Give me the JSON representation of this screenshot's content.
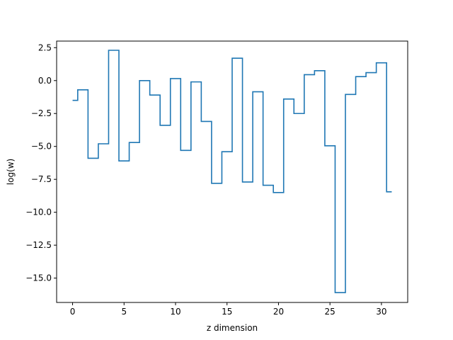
{
  "chart_data": {
    "type": "line",
    "drawstyle": "steps-mid",
    "title": "",
    "xlabel": "z dimension",
    "ylabel": "log(w)",
    "xlim": [
      -1.55,
      32.55
    ],
    "ylim": [
      -16.85,
      3.0
    ],
    "xticks": [
      0,
      5,
      10,
      15,
      20,
      25,
      30
    ],
    "yticks": [
      2.5,
      0.0,
      -2.5,
      -5.0,
      -7.5,
      -10.0,
      -12.5,
      -15.0
    ],
    "xtick_labels": [
      "0",
      "5",
      "10",
      "15",
      "20",
      "25",
      "30"
    ],
    "ytick_labels": [
      "2.5",
      "0.0",
      "−2.5",
      "−5.0",
      "−7.5",
      "−10.0",
      "−12.5",
      "−15.0"
    ],
    "grid": false,
    "line_color": "#1f77b4",
    "series": [
      {
        "x": [
          0,
          1,
          2,
          3,
          4,
          5,
          6,
          7,
          8,
          9,
          10,
          11,
          12,
          13,
          14,
          15,
          16,
          17,
          18,
          19,
          20,
          21,
          22,
          23,
          24,
          25,
          26,
          27,
          28,
          29,
          30,
          31
        ],
        "values": [
          -1.5,
          -0.7,
          -5.9,
          -4.8,
          2.3,
          -6.1,
          -4.7,
          0.0,
          -1.1,
          -3.4,
          0.15,
          -5.3,
          -0.1,
          -3.1,
          -7.8,
          -5.4,
          1.7,
          -7.7,
          -0.85,
          -7.95,
          -8.5,
          -1.4,
          -2.5,
          0.45,
          0.75,
          -4.95,
          -16.1,
          -1.05,
          0.3,
          0.6,
          1.35,
          -8.45
        ]
      }
    ]
  }
}
